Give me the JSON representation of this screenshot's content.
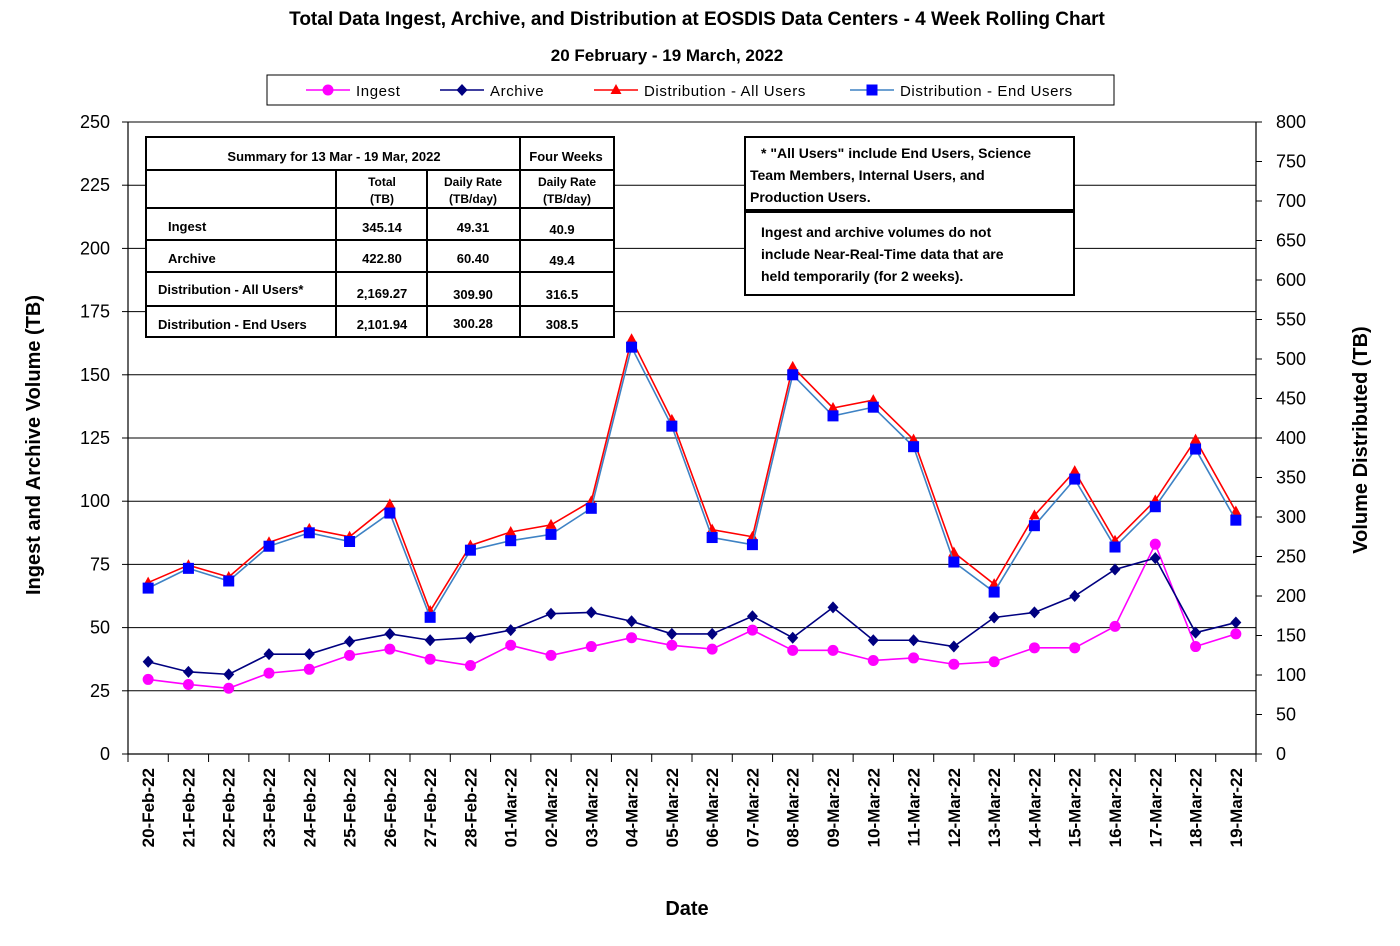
{
  "colors": {
    "ingest": "#ff00ff",
    "archive": "#000080",
    "distribution_all": "#ff0000",
    "distribution_end": "#0000ff",
    "distribution_end_line": "#3e82c4",
    "grid": "#000000"
  },
  "summary_table": {
    "header_left": "Summary for 13 Mar - 19 Mar, 2022",
    "header_right": "Four Weeks",
    "col_total": [
      "Total",
      "(TB)"
    ],
    "col_daily": [
      "Daily Rate",
      "(TB/day)"
    ],
    "col_four": [
      "Daily Rate",
      "(TB/day)"
    ],
    "rows": [
      {
        "label": "Ingest",
        "total": "345.14",
        "daily": "49.31",
        "four": "40.9"
      },
      {
        "label": "Archive",
        "total": "422.80",
        "daily": "60.40",
        "four": "49.4"
      },
      {
        "label": "Distribution - All Users*",
        "total": "2,169.27",
        "daily": "309.90",
        "four": "316.5"
      },
      {
        "label": "Distribution - End Users",
        "total": "2,101.94",
        "daily": "300.28",
        "four": "308.5"
      }
    ]
  },
  "notes": {
    "note1": [
      "* \"All Users\" include End Users, Science",
      "Team Members,  Internal Users, and",
      "Production Users."
    ],
    "note2": [
      "Ingest and archive volumes do not",
      "include Near-Real-Time data that are",
      "held temporarily (for 2 weeks)."
    ]
  },
  "chart_data": {
    "type": "line",
    "title": "Total Data Ingest, Archive, and  Distribution at EOSDIS Data Centers - 4 Week Rolling Chart",
    "subtitle": "20  February   - 19  March,  2022",
    "xlabel": "Date",
    "ylabel": "Ingest and Archive Volume (TB)",
    "y2label": "Volume Distributed (TB)",
    "ylim": [
      0,
      250
    ],
    "y2lim": [
      0,
      800
    ],
    "yticks": [
      0,
      25,
      50,
      75,
      100,
      125,
      150,
      175,
      200,
      225,
      250
    ],
    "y2ticks": [
      0,
      50,
      100,
      150,
      200,
      250,
      300,
      350,
      400,
      450,
      500,
      550,
      600,
      650,
      700,
      750,
      800
    ],
    "grid": "horizontal",
    "legend_position": "top",
    "categories": [
      "20-Feb-22",
      "21-Feb-22",
      "22-Feb-22",
      "23-Feb-22",
      "24-Feb-22",
      "25-Feb-22",
      "26-Feb-22",
      "27-Feb-22",
      "28-Feb-22",
      "01-Mar-22",
      "02-Mar-22",
      "03-Mar-22",
      "04-Mar-22",
      "05-Mar-22",
      "06-Mar-22",
      "07-Mar-22",
      "08-Mar-22",
      "09-Mar-22",
      "10-Mar-22",
      "11-Mar-22",
      "12-Mar-22",
      "13-Mar-22",
      "14-Mar-22",
      "15-Mar-22",
      "16-Mar-22",
      "17-Mar-22",
      "18-Mar-22",
      "19-Mar-22"
    ],
    "series": [
      {
        "name": "Ingest",
        "axis": "left",
        "marker": "circle",
        "values": [
          29.5,
          27.5,
          26,
          32,
          33.5,
          39,
          41.5,
          37.5,
          35,
          43,
          39,
          42.5,
          46,
          43,
          41.5,
          49,
          41,
          41,
          37,
          38,
          35.5,
          36.5,
          42,
          42,
          50.5,
          83,
          42.5,
          47.5
        ]
      },
      {
        "name": "Archive",
        "axis": "left",
        "marker": "diamond",
        "values": [
          36.5,
          32.5,
          31.5,
          39.5,
          39.5,
          44.5,
          47.5,
          45,
          46,
          49,
          55.5,
          56,
          52.5,
          47.5,
          47.5,
          54.5,
          46,
          58,
          45,
          45,
          42.5,
          54,
          56,
          62.5,
          73,
          77.5,
          48,
          52
        ]
      },
      {
        "name": "Distribution - All Users",
        "axis": "right",
        "marker": "triangle",
        "values": [
          217,
          239,
          224,
          268,
          285,
          275,
          316,
          181,
          264,
          281,
          290,
          320,
          525,
          423,
          284,
          275,
          490,
          438,
          448,
          398,
          255,
          215,
          302,
          358,
          270,
          321,
          398,
          307
        ]
      },
      {
        "name": "Distribution - End Users",
        "axis": "right",
        "marker": "square",
        "values": [
          210,
          235,
          219,
          263,
          280,
          269,
          305,
          173,
          258,
          270,
          278,
          311,
          515,
          415,
          274,
          265,
          480,
          428,
          439,
          389,
          243,
          205,
          289,
          348,
          262,
          313,
          386,
          296
        ]
      }
    ]
  }
}
